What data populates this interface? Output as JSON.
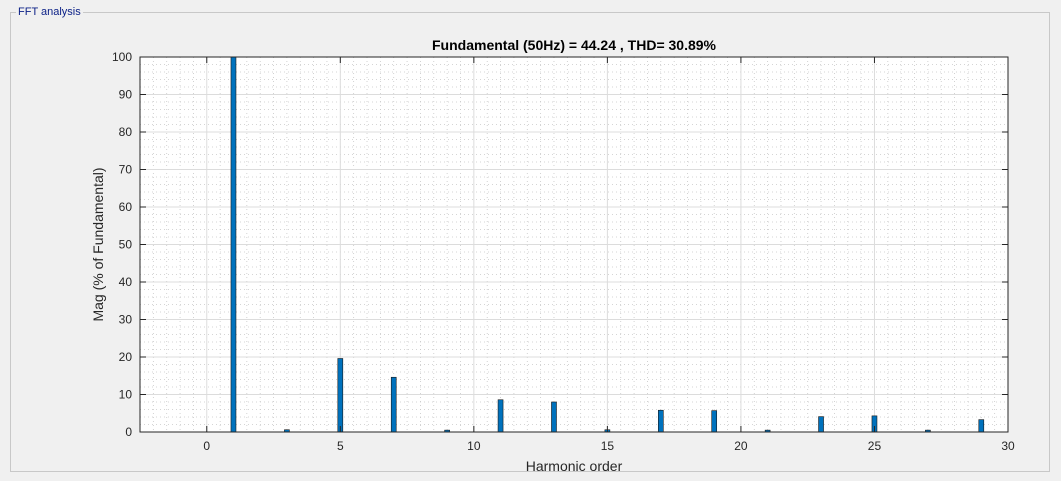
{
  "panel": {
    "title": "FFT analysis"
  },
  "chart_data": {
    "type": "bar",
    "title": "Fundamental (50Hz) = 44.24 , THD= 30.89%",
    "xlabel": "Harmonic order",
    "ylabel": "Mag (% of Fundamental)",
    "xlim": [
      -2.5,
      30
    ],
    "ylim": [
      0,
      100
    ],
    "xticks": [
      0,
      5,
      10,
      15,
      20,
      25,
      30
    ],
    "yticks": [
      0,
      10,
      20,
      30,
      40,
      50,
      60,
      70,
      80,
      90,
      100
    ],
    "grid": true,
    "minor_grid": true,
    "bar_color": "#0072bd",
    "harmonics": [
      1,
      3,
      5,
      7,
      9,
      11,
      13,
      15,
      17,
      19,
      21,
      23,
      25,
      27,
      29
    ],
    "values": [
      100,
      0.6,
      19.6,
      14.6,
      0.5,
      8.6,
      8.0,
      0.6,
      5.8,
      5.7,
      0.5,
      4.1,
      4.3,
      0.5,
      3.3
    ]
  }
}
